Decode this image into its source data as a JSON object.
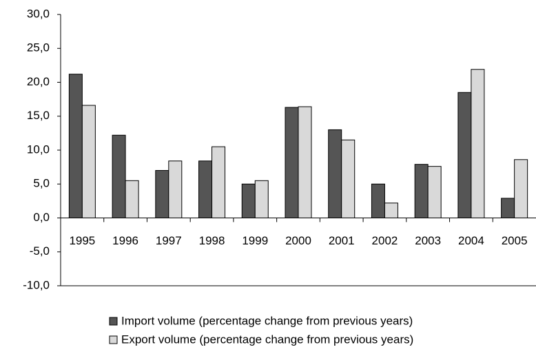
{
  "chart_data": {
    "type": "bar",
    "categories": [
      "1995",
      "1996",
      "1997",
      "1998",
      "1999",
      "2000",
      "2001",
      "2002",
      "2003",
      "2004",
      "2005"
    ],
    "series": [
      {
        "name": "Import volume (percentage change from previous years)",
        "color": "#555555",
        "values": [
          21.2,
          12.2,
          7.0,
          8.4,
          5.0,
          16.3,
          13.0,
          5.0,
          7.9,
          18.5,
          2.9
        ]
      },
      {
        "name": "Export volume (percentage change from previous years)",
        "color": "#d9d9d9",
        "values": [
          16.6,
          5.5,
          8.4,
          10.5,
          5.5,
          16.4,
          11.5,
          2.2,
          7.6,
          21.9,
          8.6
        ]
      }
    ],
    "ylim": [
      -10,
      30
    ],
    "yticks": [
      {
        "value": -10,
        "label": "-10,0"
      },
      {
        "value": -5,
        "label": "-5,0"
      },
      {
        "value": 0,
        "label": "0,0"
      },
      {
        "value": 5,
        "label": "5,0"
      },
      {
        "value": 10,
        "label": "10,0"
      },
      {
        "value": 15,
        "label": "15,0"
      },
      {
        "value": 20,
        "label": "20,0"
      },
      {
        "value": 25,
        "label": "25,0"
      },
      {
        "value": 30,
        "label": "30,0"
      }
    ],
    "grid": false,
    "legend": "bottom"
  }
}
